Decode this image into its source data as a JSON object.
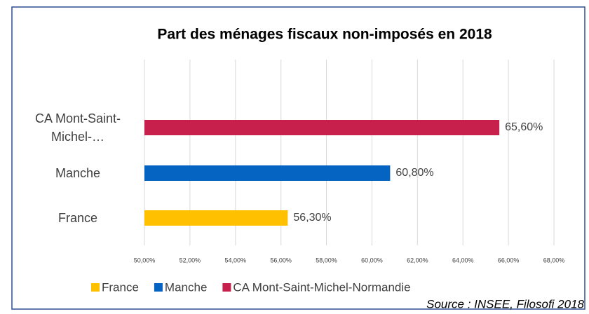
{
  "chart_data": {
    "type": "bar",
    "orientation": "horizontal",
    "title": "Part des ménages fiscaux non-imposés en 2018",
    "categories": [
      "France",
      "Manche",
      "CA Mont-Saint-Michel-…"
    ],
    "values": [
      56.3,
      60.8,
      65.6
    ],
    "value_labels": [
      "56,30%",
      "60,80%",
      "65,60%"
    ],
    "colors": [
      "#ffc000",
      "#0563c1",
      "#c8204c"
    ],
    "legend": [
      "France",
      "Manche",
      "CA Mont-Saint-Michel-Normandie"
    ],
    "xlim": [
      50,
      68
    ],
    "xticks": [
      {
        "value": 50,
        "label": "50,00%"
      },
      {
        "value": 52,
        "label": "52,00%"
      },
      {
        "value": 54,
        "label": "54,00%"
      },
      {
        "value": 56,
        "label": "56,00%"
      },
      {
        "value": 58,
        "label": "58,00%"
      },
      {
        "value": 60,
        "label": "60,00%"
      },
      {
        "value": 62,
        "label": "62,00%"
      },
      {
        "value": 64,
        "label": "64,00%"
      },
      {
        "value": 66,
        "label": "66,00%"
      },
      {
        "value": 68,
        "label": "68,00%"
      }
    ],
    "grid": true,
    "source": "Source : INSEE, Filosofi 2018"
  }
}
